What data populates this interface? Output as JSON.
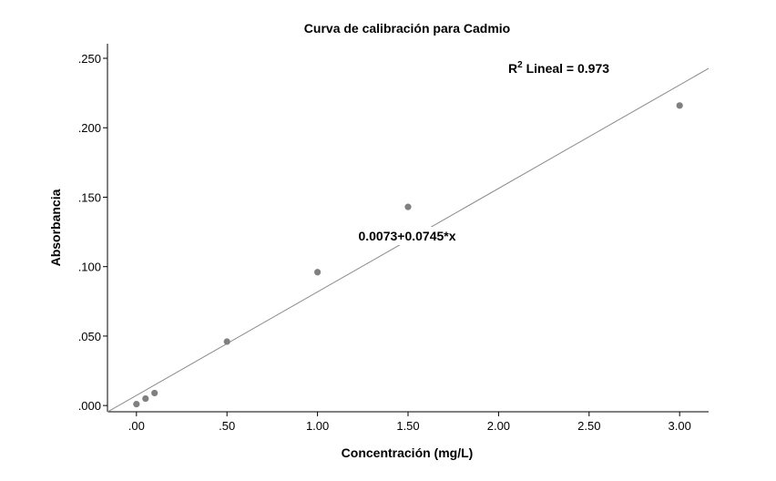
{
  "chart_data": {
    "type": "scatter",
    "title": "Curva de calibración para Cadmio",
    "xlabel": "Concentración (mg/L)",
    "ylabel": "Absorbancia",
    "xlim": [
      -0.16,
      3.16
    ],
    "ylim": [
      -0.0045,
      0.2605
    ],
    "x_ticks": [
      0,
      0.5,
      1.0,
      1.5,
      2.0,
      2.5,
      3.0
    ],
    "x_tick_labels": [
      ".00",
      ".50",
      "1.00",
      "1.50",
      "2.00",
      "2.50",
      "3.00"
    ],
    "y_ticks": [
      0,
      0.05,
      0.1,
      0.15,
      0.2,
      0.25
    ],
    "y_tick_labels": [
      ".000",
      ".050",
      ".100",
      ".150",
      ".200",
      ".250"
    ],
    "grid": false,
    "points": [
      {
        "x": 0.0,
        "y": 0.001
      },
      {
        "x": 0.05,
        "y": 0.005
      },
      {
        "x": 0.1,
        "y": 0.009
      },
      {
        "x": 0.5,
        "y": 0.046
      },
      {
        "x": 1.0,
        "y": 0.096
      },
      {
        "x": 1.5,
        "y": 0.143
      },
      {
        "x": 3.0,
        "y": 0.216
      }
    ],
    "fit_line": {
      "intercept": 0.0073,
      "slope": 0.0745
    },
    "equation_label": "0.0073+0.0745*x",
    "r2_prefix": "R",
    "r2_superscript": "2",
    "r2_suffix": " Lineal = 0.973",
    "colors": {
      "point": "#808080",
      "line": "#8a8a8a",
      "axis": "#000000"
    }
  }
}
